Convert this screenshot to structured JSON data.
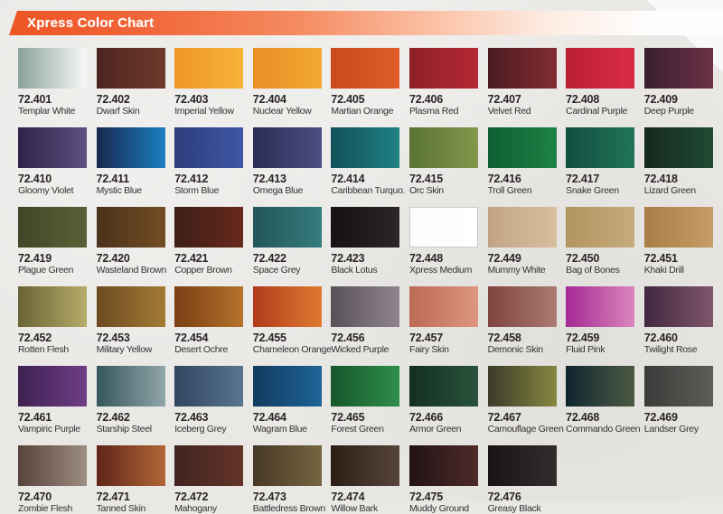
{
  "header": {
    "title": "Xpress Color Chart"
  },
  "colors": {
    "banner_start": "#ee5526",
    "banner_end": "#fefefe",
    "background": "#e9e8e5",
    "text": "#2b2627"
  },
  "swatches": [
    {
      "code": "72.401",
      "name": "Templar White",
      "from": "#8ba29a",
      "to": "#f7f8f5"
    },
    {
      "code": "72.402",
      "name": "Dwarf Skin",
      "from": "#4c2520",
      "to": "#713a2d"
    },
    {
      "code": "72.403",
      "name": "Imperial Yellow",
      "from": "#ee9527",
      "to": "#f6b237"
    },
    {
      "code": "72.404",
      "name": "Nuclear Yellow",
      "from": "#e98e26",
      "to": "#f2a832"
    },
    {
      "code": "72.405",
      "name": "Martian Orange",
      "from": "#c94a1e",
      "to": "#df5c26"
    },
    {
      "code": "72.406",
      "name": "Plasma Red",
      "from": "#8e2026",
      "to": "#b52834"
    },
    {
      "code": "72.407",
      "name": "Velvet Red",
      "from": "#491d22",
      "to": "#832c31"
    },
    {
      "code": "72.408",
      "name": "Cardinal Purple",
      "from": "#bb1e35",
      "to": "#d92c45"
    },
    {
      "code": "72.409",
      "name": "Deep Purple",
      "from": "#39202e",
      "to": "#6d3147"
    },
    {
      "code": "72.410",
      "name": "Gloomy Violet",
      "from": "#2f2349",
      "to": "#5d5080"
    },
    {
      "code": "72.411",
      "name": "Mystic Blue",
      "from": "#182750",
      "to": "#1c7fc1"
    },
    {
      "code": "72.412",
      "name": "Storm Blue",
      "from": "#2c3c7c",
      "to": "#3f57a6"
    },
    {
      "code": "72.413",
      "name": "Omega Blue",
      "from": "#2c2d55",
      "to": "#4a4f80"
    },
    {
      "code": "72.414",
      "name": "Caribbean Turquo.",
      "from": "#14505a",
      "to": "#1f8184"
    },
    {
      "code": "72.415",
      "name": "Orc Skin",
      "from": "#5b7334",
      "to": "#82984c"
    },
    {
      "code": "72.416",
      "name": "Troll Green",
      "from": "#0e5f32",
      "to": "#1f8245"
    },
    {
      "code": "72.417",
      "name": "Snake Green",
      "from": "#124f3e",
      "to": "#20745a"
    },
    {
      "code": "72.418",
      "name": "Lizard Green",
      "from": "#15291d",
      "to": "#204a34"
    },
    {
      "code": "72.419",
      "name": "Plague Green",
      "from": "#3f4727",
      "to": "#5a6036"
    },
    {
      "code": "72.420",
      "name": "Wasteland Brown",
      "from": "#4b311a",
      "to": "#734e24"
    },
    {
      "code": "72.421",
      "name": "Copper Brown",
      "from": "#3d1e16",
      "to": "#67291c"
    },
    {
      "code": "72.422",
      "name": "Space Grey",
      "from": "#235659",
      "to": "#357c7e"
    },
    {
      "code": "72.423",
      "name": "Black Lotus",
      "from": "#171114",
      "to": "#2d2528"
    },
    {
      "code": "72.448",
      "name": "Xpress Medium",
      "from": "#fdfdfd",
      "to": "#ffffff",
      "border": "#c9c9c9"
    },
    {
      "code": "72.449",
      "name": "Mummy White",
      "from": "#c2a485",
      "to": "#d8bfa0"
    },
    {
      "code": "72.450",
      "name": "Bag of Bones",
      "from": "#b2945f",
      "to": "#c7ab7c"
    },
    {
      "code": "72.451",
      "name": "Khaki Drill",
      "from": "#a97d46",
      "to": "#c69d66"
    },
    {
      "code": "72.452",
      "name": "Rotten Flesh",
      "from": "#696434",
      "to": "#b6ab69"
    },
    {
      "code": "72.453",
      "name": "Military Yellow",
      "from": "#6d4a20",
      "to": "#a37b35"
    },
    {
      "code": "72.454",
      "name": "Desert Ochre",
      "from": "#7a3f14",
      "to": "#b4722b"
    },
    {
      "code": "72.455",
      "name": "Chameleon Orange",
      "from": "#b03c1c",
      "to": "#e07930"
    },
    {
      "code": "72.456",
      "name": "Wicked Purple",
      "from": "#595158",
      "to": "#90858d"
    },
    {
      "code": "72.457",
      "name": "Fairy Skin",
      "from": "#bc6a55",
      "to": "#dd967f"
    },
    {
      "code": "72.458",
      "name": "Demonic Skin",
      "from": "#7f4440",
      "to": "#ab7b72"
    },
    {
      "code": "72.459",
      "name": "Fluid Pink",
      "from": "#a52a95",
      "to": "#da86bd"
    },
    {
      "code": "72.460",
      "name": "Twilight Rose",
      "from": "#412840",
      "to": "#7f566b"
    },
    {
      "code": "72.461",
      "name": "Vampiric Purple",
      "from": "#3e2152",
      "to": "#703e85"
    },
    {
      "code": "72.462",
      "name": "Starship Steel",
      "from": "#35565c",
      "to": "#91a6aa"
    },
    {
      "code": "72.463",
      "name": "Iceberg Grey",
      "from": "#2f4560",
      "to": "#5a7590"
    },
    {
      "code": "72.464",
      "name": "Wagram Blue",
      "from": "#123b60",
      "to": "#1d6496"
    },
    {
      "code": "72.465",
      "name": "Forest Green",
      "from": "#17572c",
      "to": "#2f8e4b"
    },
    {
      "code": "72.466",
      "name": "Armor Green",
      "from": "#142f23",
      "to": "#28533b"
    },
    {
      "code": "72.467",
      "name": "Camouflage Green",
      "from": "#3b3c29",
      "to": "#878741"
    },
    {
      "code": "72.468",
      "name": "Commando Green",
      "from": "#0f2630",
      "to": "#4d5b43"
    },
    {
      "code": "72.469",
      "name": "Landser Grey",
      "from": "#3c3b39",
      "to": "#5f5d5a"
    },
    {
      "code": "72.470",
      "name": "Zombie Flesh",
      "from": "#57433a",
      "to": "#9e8d82"
    },
    {
      "code": "72.471",
      "name": "Tanned Skin",
      "from": "#5f2519",
      "to": "#b26636"
    },
    {
      "code": "72.472",
      "name": "Mahogany",
      "from": "#422421",
      "to": "#633428"
    },
    {
      "code": "72.473",
      "name": "Battledress Brown",
      "from": "#463727",
      "to": "#776640"
    },
    {
      "code": "72.474",
      "name": "Willow Bark",
      "from": "#2c1e16",
      "to": "#57453b"
    },
    {
      "code": "72.475",
      "name": "Muddy Ground",
      "from": "#221215",
      "to": "#4e2c29"
    },
    {
      "code": "72.476",
      "name": "Greasy Black",
      "from": "#1a1315",
      "to": "#342c2c"
    }
  ]
}
